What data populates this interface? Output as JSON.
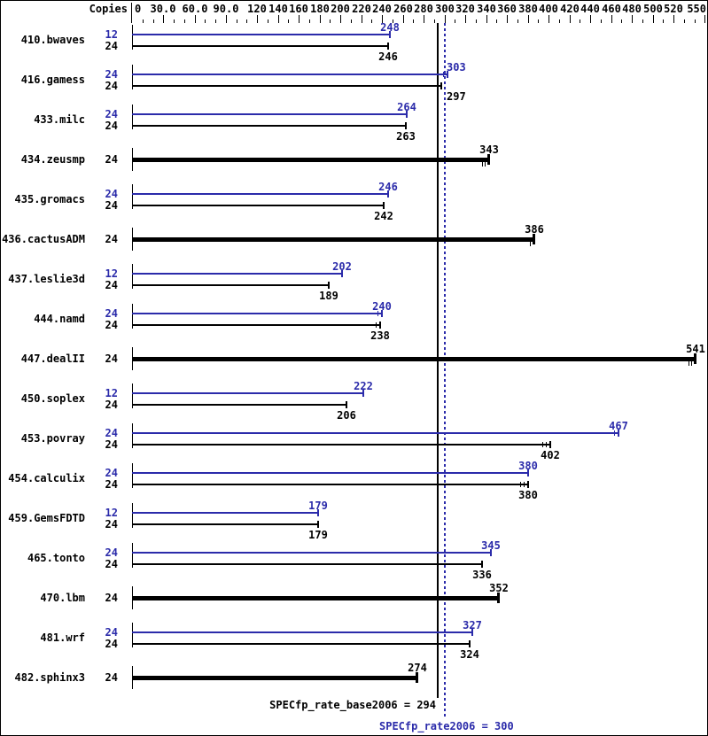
{
  "chart_data": {
    "type": "bar",
    "orientation": "horizontal",
    "title": "",
    "copies_header": "Copies",
    "axis": {
      "tick_values": [
        0,
        30,
        60,
        90,
        120,
        140,
        160,
        180,
        200,
        220,
        240,
        260,
        280,
        300,
        320,
        340,
        360,
        380,
        400,
        420,
        440,
        460,
        480,
        500,
        520,
        550
      ],
      "tick_labels": [
        "0",
        "30.0",
        "60.0",
        "90.0",
        "120",
        "140",
        "160",
        "180",
        "200",
        "220",
        "240",
        "260",
        "280",
        "300",
        "320",
        "340",
        "360",
        "380",
        "400",
        "420",
        "440",
        "460",
        "480",
        "500",
        "520",
        "550"
      ],
      "minor_tick_step": 10,
      "max": 560
    },
    "colors": {
      "peak": "#2b2baa",
      "base": "#000000"
    },
    "benchmarks": [
      {
        "name": "410.bwaves",
        "bars": [
          {
            "copies": "12",
            "type": "peak",
            "value": 248
          },
          {
            "copies": "24",
            "type": "base",
            "value": 246
          }
        ]
      },
      {
        "name": "416.gamess",
        "bars": [
          {
            "copies": "24",
            "type": "peak",
            "value": 303,
            "run_ticks": 1
          },
          {
            "copies": "24",
            "type": "base",
            "value": 297,
            "run_ticks": 1
          }
        ]
      },
      {
        "name": "433.milc",
        "bars": [
          {
            "copies": "24",
            "type": "peak",
            "value": 264
          },
          {
            "copies": "24",
            "type": "base",
            "value": 263
          }
        ]
      },
      {
        "name": "434.zeusmp",
        "bars": [
          {
            "copies": "24",
            "type": "single",
            "value": 343,
            "run_ticks": 2
          }
        ]
      },
      {
        "name": "435.gromacs",
        "bars": [
          {
            "copies": "24",
            "type": "peak",
            "value": 246
          },
          {
            "copies": "24",
            "type": "base",
            "value": 242
          }
        ]
      },
      {
        "name": "436.cactusADM",
        "bars": [
          {
            "copies": "24",
            "type": "single",
            "value": 386,
            "run_ticks": 1
          }
        ]
      },
      {
        "name": "437.leslie3d",
        "bars": [
          {
            "copies": "12",
            "type": "peak",
            "value": 202
          },
          {
            "copies": "24",
            "type": "base",
            "value": 189
          }
        ]
      },
      {
        "name": "444.namd",
        "bars": [
          {
            "copies": "24",
            "type": "peak",
            "value": 240,
            "run_ticks": 1
          },
          {
            "copies": "24",
            "type": "base",
            "value": 238,
            "run_ticks": 1
          }
        ]
      },
      {
        "name": "447.dealII",
        "bars": [
          {
            "copies": "24",
            "type": "single",
            "value": 541,
            "run_ticks": 2
          }
        ]
      },
      {
        "name": "450.soplex",
        "bars": [
          {
            "copies": "12",
            "type": "peak",
            "value": 222
          },
          {
            "copies": "24",
            "type": "base",
            "value": 206
          }
        ]
      },
      {
        "name": "453.povray",
        "bars": [
          {
            "copies": "24",
            "type": "peak",
            "value": 467,
            "run_ticks": 1
          },
          {
            "copies": "24",
            "type": "base",
            "value": 402,
            "run_ticks": 2
          }
        ]
      },
      {
        "name": "454.calculix",
        "bars": [
          {
            "copies": "24",
            "type": "peak",
            "value": 380
          },
          {
            "copies": "24",
            "type": "base",
            "value": 380,
            "run_ticks": 2
          }
        ]
      },
      {
        "name": "459.GemsFDTD",
        "bars": [
          {
            "copies": "12",
            "type": "peak",
            "value": 179
          },
          {
            "copies": "24",
            "type": "base",
            "value": 179
          }
        ]
      },
      {
        "name": "465.tonto",
        "bars": [
          {
            "copies": "24",
            "type": "peak",
            "value": 345
          },
          {
            "copies": "24",
            "type": "base",
            "value": 336
          }
        ]
      },
      {
        "name": "470.lbm",
        "bars": [
          {
            "copies": "24",
            "type": "single",
            "value": 352
          }
        ]
      },
      {
        "name": "481.wrf",
        "bars": [
          {
            "copies": "24",
            "type": "peak",
            "value": 327
          },
          {
            "copies": "24",
            "type": "base",
            "value": 324
          }
        ]
      },
      {
        "name": "482.sphinx3",
        "bars": [
          {
            "copies": "24",
            "type": "single",
            "value": 274
          }
        ]
      }
    ],
    "reference_lines": [
      {
        "name": "base",
        "label": "SPECfp_rate_base2006 = 294",
        "value": 294,
        "style": "solid",
        "color": "#000000"
      },
      {
        "name": "peak",
        "label": "SPECfp_rate2006 = 300",
        "value": 300,
        "style": "dotted",
        "color": "#2b2baa"
      }
    ]
  }
}
